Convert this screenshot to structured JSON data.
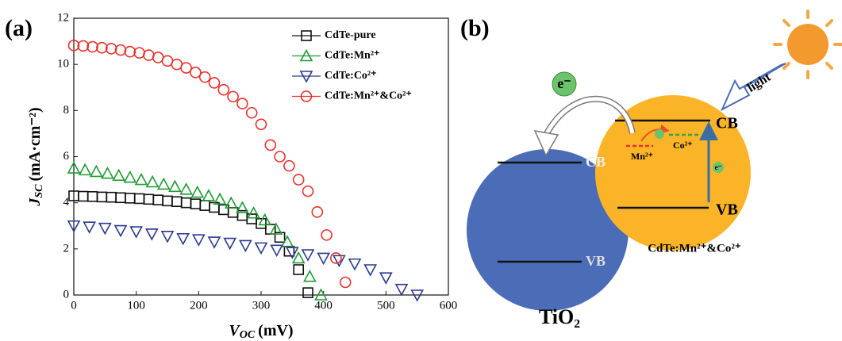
{
  "chart_data": {
    "type": "scatter",
    "panel_label": "(a)",
    "xlabel": {
      "symbol": "V",
      "subscript": "OC",
      "unit": "(mV)"
    },
    "ylabel": {
      "symbol": "J",
      "subscript": "SC",
      "unit": "(mA·cm⁻²)"
    },
    "xlim": [
      0,
      600
    ],
    "ylim": [
      0,
      12
    ],
    "xticks": [
      0,
      100,
      200,
      300,
      400,
      500,
      600
    ],
    "yticks": [
      0,
      2,
      4,
      6,
      8,
      10,
      12
    ],
    "legend": "upper right",
    "series": [
      {
        "name": "CdTe-pure",
        "color": "#111111",
        "marker": "square",
        "x": [
          0,
          15,
          30,
          45,
          60,
          75,
          90,
          105,
          120,
          135,
          150,
          165,
          180,
          195,
          210,
          225,
          240,
          255,
          270,
          285,
          300,
          315,
          330,
          345,
          360,
          375
        ],
        "values": [
          4.3,
          4.28,
          4.27,
          4.25,
          4.24,
          4.22,
          4.2,
          4.18,
          4.15,
          4.12,
          4.08,
          4.05,
          4.0,
          3.95,
          3.88,
          3.8,
          3.7,
          3.58,
          3.45,
          3.3,
          3.1,
          2.85,
          2.5,
          1.9,
          1.1,
          0.1
        ]
      },
      {
        "name": "CdTe:Mn²⁺",
        "color": "#1f9a33",
        "marker": "triangle-up",
        "x": [
          0,
          18,
          36,
          54,
          72,
          90,
          108,
          126,
          144,
          162,
          180,
          198,
          216,
          234,
          252,
          270,
          288,
          306,
          324,
          342,
          360,
          378,
          396
        ],
        "values": [
          5.5,
          5.42,
          5.35,
          5.27,
          5.18,
          5.1,
          5.0,
          4.9,
          4.8,
          4.7,
          4.58,
          4.45,
          4.3,
          4.15,
          3.98,
          3.78,
          3.55,
          3.25,
          2.85,
          2.3,
          1.6,
          0.8,
          0.0
        ]
      },
      {
        "name": "CdTe:Co²⁺",
        "color": "#2b3990",
        "marker": "triangle-down",
        "x": [
          0,
          25,
          50,
          75,
          100,
          125,
          150,
          175,
          200,
          225,
          250,
          275,
          300,
          325,
          350,
          375,
          400,
          425,
          450,
          475,
          500,
          525,
          550
        ],
        "values": [
          3.0,
          2.95,
          2.9,
          2.8,
          2.75,
          2.65,
          2.55,
          2.45,
          2.4,
          2.3,
          2.25,
          2.15,
          2.05,
          1.95,
          1.85,
          1.75,
          1.6,
          1.5,
          1.35,
          1.1,
          0.75,
          0.25,
          0.0
        ]
      },
      {
        "name": "CdTe:Mn²⁺&Co²⁺",
        "color": "#e8302a",
        "marker": "circle",
        "x": [
          0,
          15,
          30,
          45,
          60,
          75,
          90,
          105,
          120,
          135,
          150,
          165,
          180,
          195,
          210,
          225,
          240,
          255,
          270,
          285,
          300,
          315,
          330,
          345,
          360,
          375,
          390,
          405,
          420,
          435
        ],
        "values": [
          10.82,
          10.8,
          10.76,
          10.72,
          10.68,
          10.62,
          10.55,
          10.5,
          10.4,
          10.3,
          10.15,
          10.0,
          9.85,
          9.65,
          9.45,
          9.2,
          8.9,
          8.6,
          8.3,
          7.9,
          7.4,
          6.5,
          6.0,
          5.6,
          5.0,
          4.5,
          3.6,
          2.6,
          1.6,
          0.55
        ]
      }
    ]
  },
  "diagram": {
    "panel_label": "(b)",
    "electron": "e⁻",
    "light": "light",
    "tio2": {
      "cb": "CB",
      "vb": "VB",
      "label": "TiO₂"
    },
    "cdte": {
      "cb": "CB",
      "vb": "VB",
      "mn": "Mn²⁺",
      "co": "Co²⁺",
      "small_electron": "e⁻",
      "label": "CdTe:Mn²⁺&Co²⁺"
    }
  }
}
